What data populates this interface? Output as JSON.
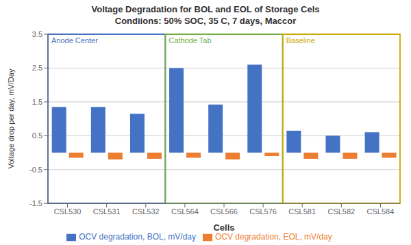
{
  "chart_data": {
    "type": "bar",
    "title": "Voltage Degradation for BOL and EOL of Storage Cels",
    "subtitle": "Condiions: 50% SOC, 35 C, 7 days, Maccor",
    "xlabel": "Cells",
    "ylabel": "Voltage drop per day, mV/Day",
    "categories": [
      "CSL530",
      "CSL531",
      "CSL532",
      "CSL564",
      "CSL566",
      "CSL576",
      "CSL581",
      "CSL582",
      "CSL584"
    ],
    "series": [
      {
        "name": "OCV degradation, BOL, mV/day",
        "color": "#4472C4",
        "values": [
          1.35,
          1.35,
          1.15,
          2.5,
          1.42,
          2.6,
          0.65,
          0.5,
          0.6
        ]
      },
      {
        "name": "OCV degradation, EOL, mV/day",
        "color": "#ED7D31",
        "values": [
          -0.15,
          -0.2,
          -0.18,
          -0.15,
          -0.2,
          -0.1,
          -0.18,
          -0.18,
          -0.15
        ]
      }
    ],
    "ylim": [
      -1.5,
      3.5
    ],
    "yticks": [
      -1.5,
      -0.5,
      0.5,
      1.5,
      2.5,
      3.5
    ],
    "grid": true,
    "legend": "bottom",
    "annotations": [
      {
        "text": "Anode Center",
        "color": "#4472C4",
        "from": "CSL530",
        "to": "CSL532"
      },
      {
        "text": "Cathode Tab",
        "color": "#70AD47",
        "from": "CSL564",
        "to": "CSL576"
      },
      {
        "text": "Baseline",
        "color": "#C8A800",
        "from": "CSL581",
        "to": "CSL584"
      }
    ]
  }
}
